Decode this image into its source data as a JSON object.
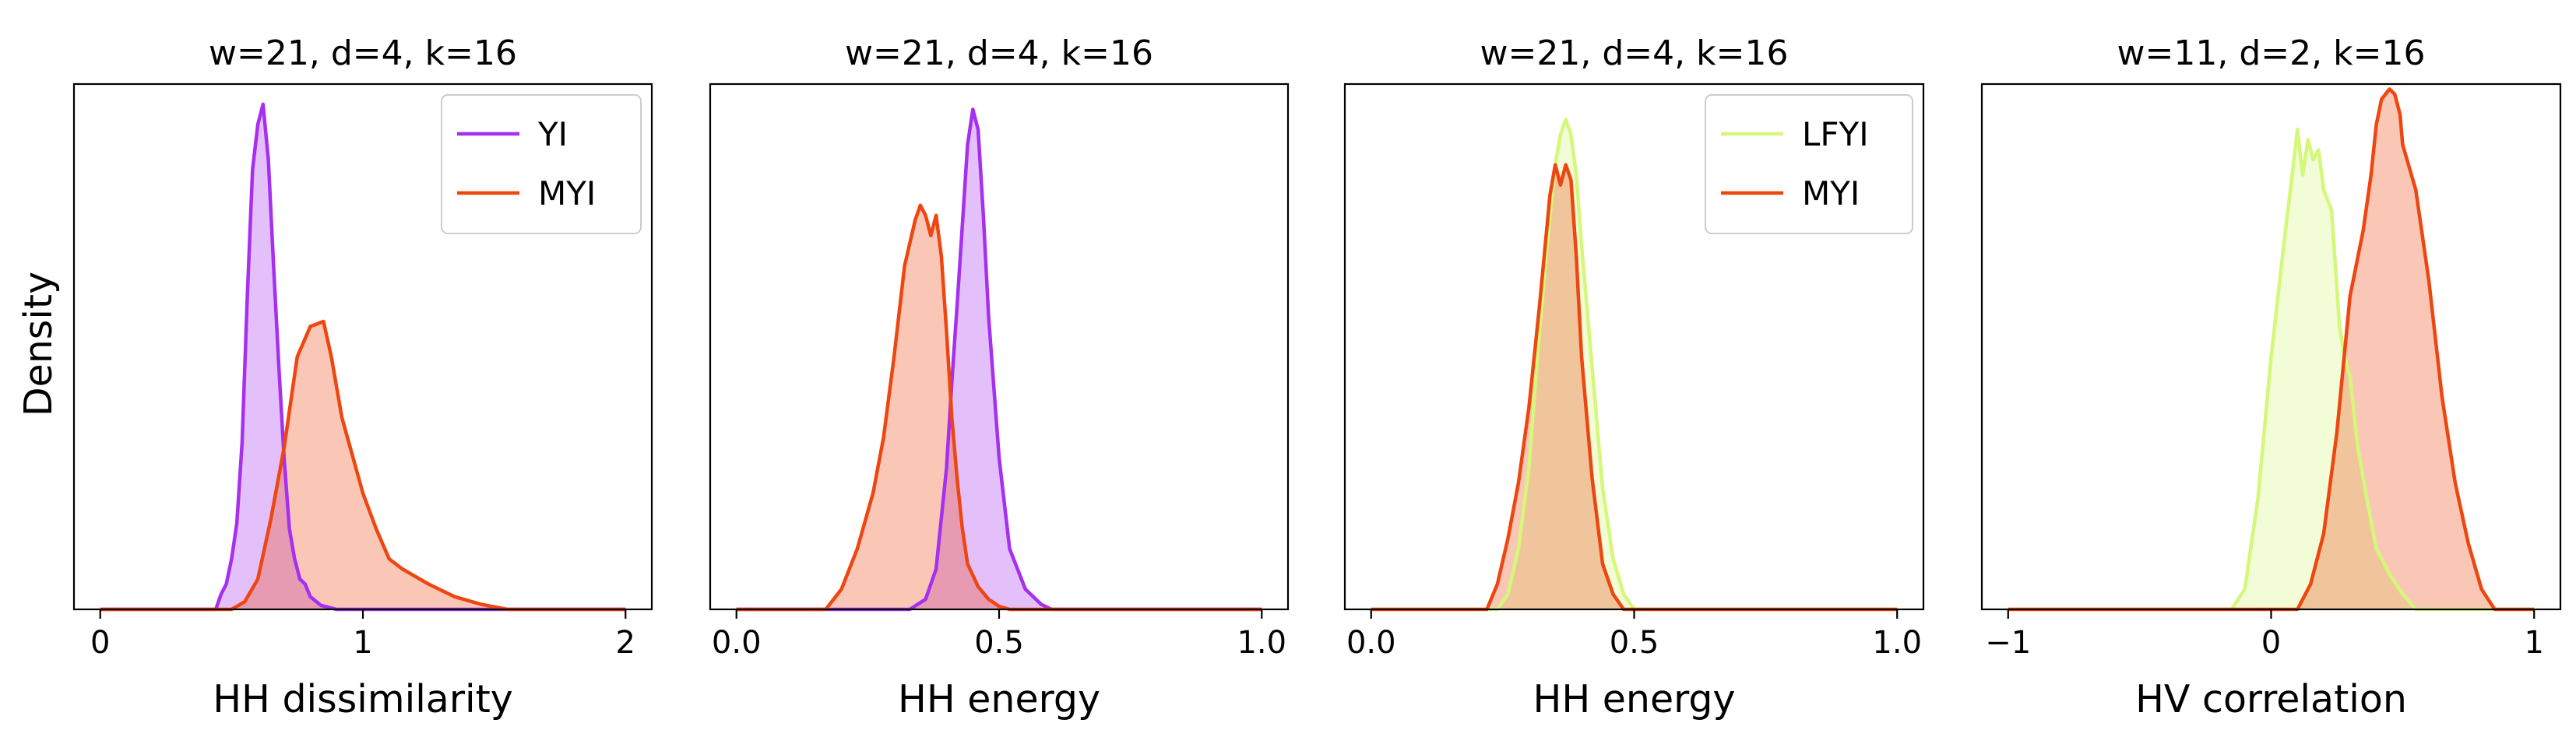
{
  "figure": {
    "ylabel": "Density"
  },
  "chart_data": [
    {
      "type": "area",
      "title": "w=21, d=4, k=16",
      "xlabel": "HH dissimilarity",
      "ylabel": "Density",
      "xlim": [
        -0.1,
        2.1
      ],
      "ylim": [
        0,
        10.4
      ],
      "xticks": [
        0,
        1,
        2
      ],
      "xticklabels": [
        "0",
        "1",
        "2"
      ],
      "legend": {
        "position": "top-right"
      },
      "series": [
        {
          "name": "YI",
          "color": "#a62ff0",
          "fill": "#d9b3f6",
          "x": [
            0,
            0.44,
            0.46,
            0.48,
            0.5,
            0.52,
            0.54,
            0.56,
            0.58,
            0.6,
            0.62,
            0.64,
            0.66,
            0.68,
            0.7,
            0.72,
            0.74,
            0.76,
            0.78,
            0.8,
            0.84,
            0.9,
            2.0
          ],
          "y": [
            0,
            0,
            0.3,
            0.5,
            1.0,
            1.7,
            3.3,
            6.2,
            8.7,
            9.6,
            10.0,
            8.9,
            6.8,
            4.8,
            3.0,
            1.6,
            1.0,
            0.6,
            0.5,
            0.25,
            0.08,
            0,
            0
          ]
        },
        {
          "name": "MYI",
          "color": "#ee4611",
          "fill": "#f5b9a4",
          "x": [
            0,
            0.5,
            0.55,
            0.6,
            0.65,
            0.7,
            0.75,
            0.8,
            0.85,
            0.88,
            0.92,
            1.0,
            1.05,
            1.1,
            1.15,
            1.25,
            1.35,
            1.45,
            1.55,
            2.0
          ],
          "y": [
            0,
            0,
            0.15,
            0.6,
            1.8,
            3.2,
            5.0,
            5.6,
            5.7,
            5.0,
            3.8,
            2.3,
            1.6,
            1.0,
            0.8,
            0.5,
            0.25,
            0.1,
            0,
            0
          ]
        }
      ]
    },
    {
      "type": "area",
      "title": "w=21, d=4, k=16",
      "xlabel": "HH energy",
      "ylabel": "",
      "xlim": [
        -0.05,
        1.05
      ],
      "ylim": [
        0,
        10.4
      ],
      "xticks": [
        0,
        0.5,
        1.0
      ],
      "xticklabels": [
        "0.0",
        "0.5",
        "1.0"
      ],
      "legend": null,
      "series": [
        {
          "name": "",
          "color": "#a62ff0",
          "fill": "#d9b3f6",
          "x": [
            0,
            0.33,
            0.36,
            0.38,
            0.4,
            0.41,
            0.42,
            0.43,
            0.44,
            0.45,
            0.46,
            0.47,
            0.48,
            0.5,
            0.52,
            0.55,
            0.58,
            0.6,
            1.0
          ],
          "y": [
            0,
            0,
            0.2,
            0.8,
            2.8,
            4.5,
            6.0,
            7.6,
            9.2,
            9.9,
            9.5,
            7.8,
            5.8,
            3.0,
            1.2,
            0.4,
            0.1,
            0,
            0
          ]
        },
        {
          "name": "",
          "color": "#ee4611",
          "fill": "#f5b9a4",
          "x": [
            0,
            0.17,
            0.2,
            0.23,
            0.26,
            0.28,
            0.3,
            0.32,
            0.34,
            0.35,
            0.36,
            0.37,
            0.38,
            0.39,
            0.4,
            0.41,
            0.42,
            0.43,
            0.44,
            0.46,
            0.48,
            0.5,
            0.52,
            1.0
          ],
          "y": [
            0,
            0,
            0.4,
            1.2,
            2.3,
            3.4,
            5.0,
            6.8,
            7.7,
            8.0,
            7.8,
            7.4,
            7.8,
            7.0,
            5.5,
            3.8,
            2.6,
            1.6,
            0.9,
            0.45,
            0.2,
            0.06,
            0,
            0
          ]
        }
      ]
    },
    {
      "type": "area",
      "title": "w=21, d=4, k=16",
      "xlabel": "HH energy",
      "ylabel": "",
      "xlim": [
        -0.05,
        1.05
      ],
      "ylim": [
        0,
        10.4
      ],
      "xticks": [
        0,
        0.5,
        1.0
      ],
      "xticklabels": [
        "0.0",
        "0.5",
        "1.0"
      ],
      "legend": {
        "position": "top-right"
      },
      "series": [
        {
          "name": "LFYI",
          "color": "#d5f77a",
          "fill": "#eefbcf",
          "x": [
            0,
            0.24,
            0.26,
            0.28,
            0.3,
            0.32,
            0.34,
            0.35,
            0.36,
            0.37,
            0.38,
            0.39,
            0.4,
            0.42,
            0.44,
            0.46,
            0.48,
            0.5,
            1.0
          ],
          "y": [
            0,
            0,
            0.3,
            1.2,
            2.8,
            5.5,
            7.8,
            8.8,
            9.4,
            9.7,
            9.4,
            8.6,
            7.2,
            4.8,
            2.4,
            1.0,
            0.3,
            0,
            0
          ]
        },
        {
          "name": "MYI",
          "color": "#ee4611",
          "fill": "#f5b9a4",
          "x": [
            0,
            0.22,
            0.24,
            0.26,
            0.28,
            0.3,
            0.32,
            0.34,
            0.35,
            0.36,
            0.37,
            0.38,
            0.39,
            0.4,
            0.42,
            0.44,
            0.46,
            0.48,
            1.0
          ],
          "y": [
            0,
            0,
            0.5,
            1.4,
            2.5,
            4.0,
            6.0,
            8.2,
            8.8,
            8.4,
            8.8,
            8.5,
            7.0,
            5.0,
            2.6,
            0.9,
            0.3,
            0,
            0
          ]
        }
      ]
    },
    {
      "type": "area",
      "title": "w=11, d=2, k=16",
      "xlabel": "HV correlation",
      "ylabel": "",
      "xlim": [
        -1.1,
        1.1
      ],
      "ylim": [
        0,
        10.4
      ],
      "xticks": [
        -1,
        0,
        1
      ],
      "xticklabels": [
        "−1",
        "0",
        "1"
      ],
      "legend": null,
      "series": [
        {
          "name": "",
          "color": "#d5f77a",
          "fill": "#eefbcf",
          "x": [
            -1.0,
            -0.15,
            -0.1,
            -0.05,
            0.0,
            0.05,
            0.08,
            0.1,
            0.12,
            0.14,
            0.16,
            0.18,
            0.2,
            0.23,
            0.26,
            0.28,
            0.3,
            0.33,
            0.36,
            0.4,
            0.45,
            0.5,
            0.55,
            1.0
          ],
          "y": [
            0,
            0,
            0.4,
            2.2,
            5.0,
            7.3,
            8.6,
            9.5,
            8.6,
            9.3,
            8.9,
            9.1,
            8.3,
            7.9,
            5.6,
            5.0,
            4.6,
            3.2,
            2.3,
            1.2,
            0.7,
            0.3,
            0,
            0
          ]
        },
        {
          "name": "",
          "color": "#ee4611",
          "fill": "#f5b9a4",
          "x": [
            -1.0,
            0.1,
            0.15,
            0.2,
            0.25,
            0.3,
            0.35,
            0.38,
            0.4,
            0.42,
            0.45,
            0.47,
            0.49,
            0.5,
            0.55,
            0.6,
            0.65,
            0.7,
            0.75,
            0.8,
            0.85,
            1.0
          ],
          "y": [
            0,
            0,
            0.5,
            1.5,
            3.5,
            6.2,
            7.5,
            8.6,
            9.6,
            10.1,
            10.3,
            10.2,
            9.8,
            9.2,
            8.3,
            6.5,
            4.2,
            2.5,
            1.3,
            0.4,
            0,
            0
          ]
        }
      ]
    }
  ]
}
